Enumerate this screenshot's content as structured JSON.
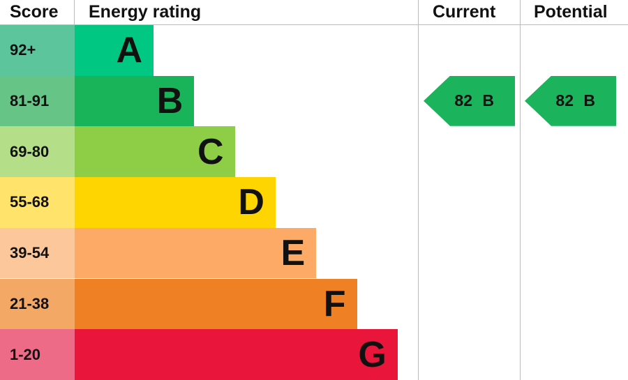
{
  "chart_data": {
    "type": "bar",
    "headers": {
      "score": "Score",
      "rating": "Energy rating",
      "current": "Current",
      "potential": "Potential"
    },
    "bands": [
      {
        "letter": "A",
        "range": "92+",
        "color": "#00c781",
        "score_color": "#5cc59c"
      },
      {
        "letter": "B",
        "range": "81-91",
        "color": "#19b459",
        "score_color": "#67c487"
      },
      {
        "letter": "C",
        "range": "69-80",
        "color": "#8dce46",
        "score_color": "#b4df88"
      },
      {
        "letter": "D",
        "range": "55-68",
        "color": "#ffd500",
        "score_color": "#ffe36a"
      },
      {
        "letter": "E",
        "range": "39-54",
        "color": "#fcaa65",
        "score_color": "#fcc79a"
      },
      {
        "letter": "F",
        "range": "21-38",
        "color": "#ef8023",
        "score_color": "#f3a866"
      },
      {
        "letter": "G",
        "range": "1-20",
        "color": "#e9153b",
        "score_color": "#ee6b87"
      }
    ],
    "current": {
      "value": 82,
      "band": "B",
      "label": "82 B",
      "color": "#1bb35b"
    },
    "potential": {
      "value": 82,
      "band": "B",
      "label": "82 B",
      "color": "#1bb35b"
    }
  }
}
